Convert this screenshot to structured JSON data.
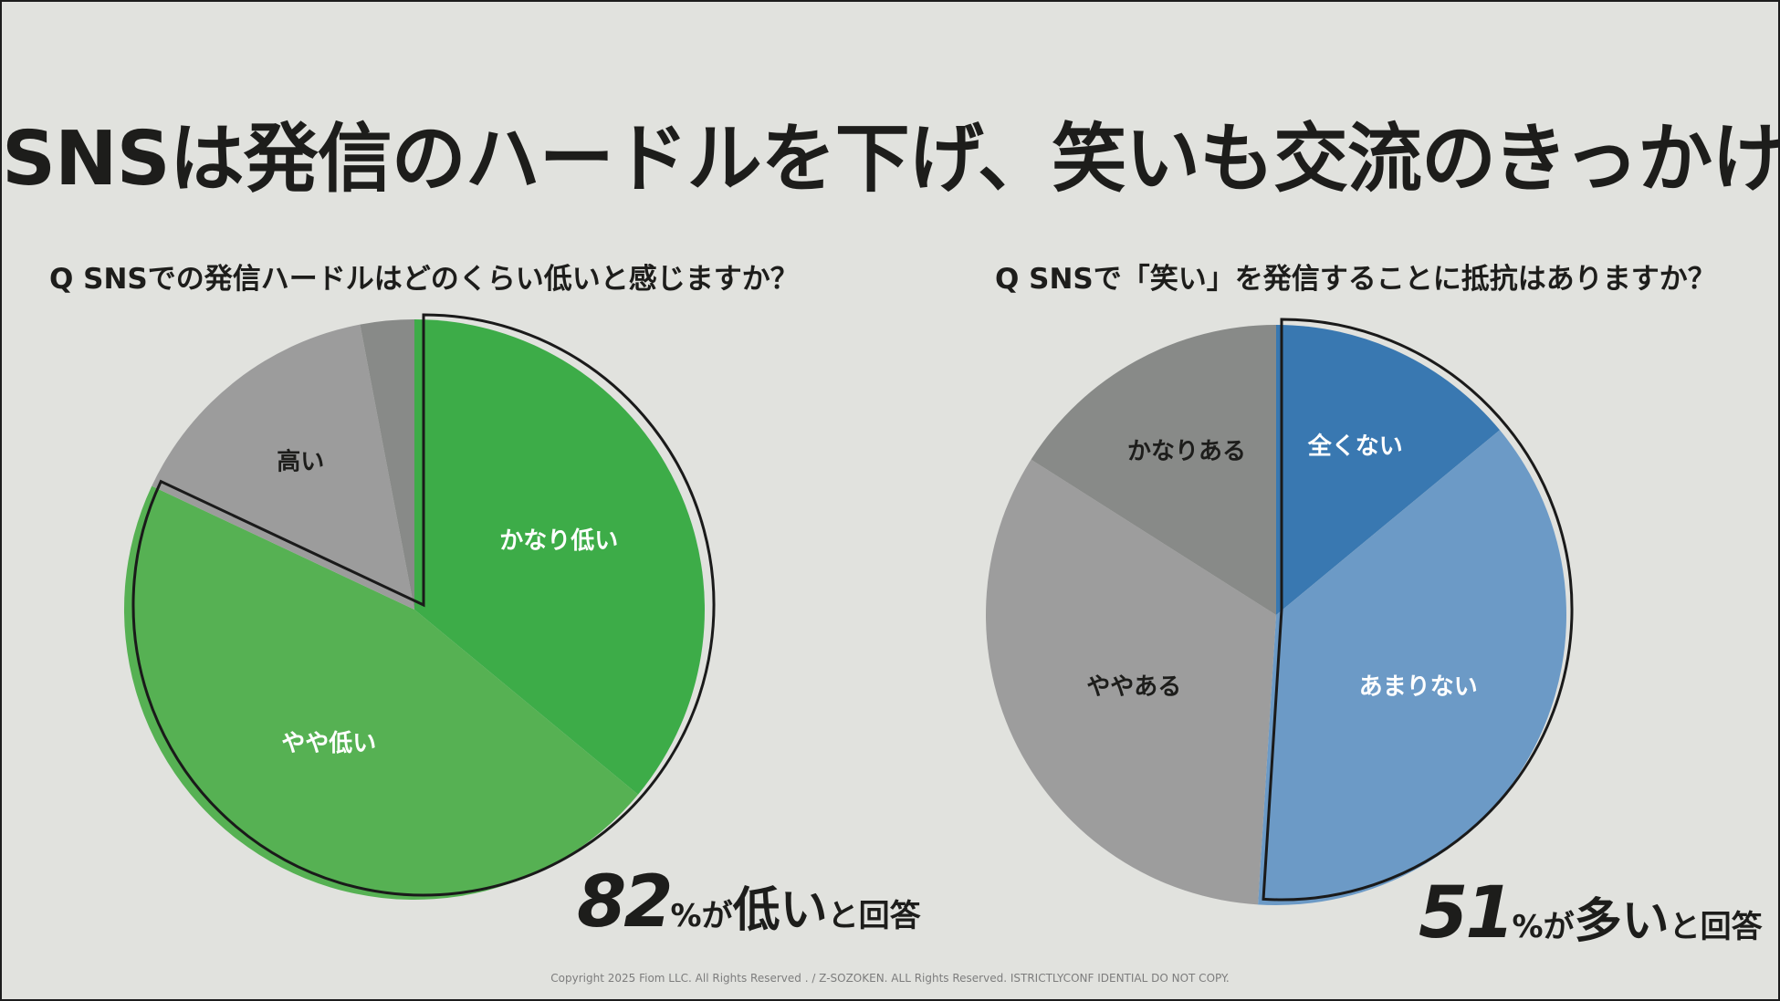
{
  "title": "SNSは発信のハードルを下げ、笑いも交流のきっかけに",
  "chart_data": [
    {
      "type": "pie",
      "question": "SNSでの発信ハードルはどのくらい低いと感じますか？",
      "question_prefix": "Q",
      "start_angle_deg": 0,
      "slices": [
        {
          "label": "かなり低い",
          "value": 36,
          "color": "#3dac48",
          "label_color": "#ffffff",
          "highlighted": true
        },
        {
          "label": "やや低い",
          "value": 46,
          "color": "#56b153",
          "label_color": "#ffffff",
          "highlighted": true
        },
        {
          "label": "高い",
          "value": 15,
          "color": "#9c9c9c",
          "label_color": "#1d1d1b",
          "highlighted": false
        },
        {
          "label": "",
          "value": 3,
          "color": "#888a88",
          "label_color": "#1d1d1b",
          "highlighted": false
        }
      ],
      "callout": {
        "number": "82",
        "percent": "%",
        "particle": "が",
        "word": "低い",
        "suffix": "と回答"
      }
    },
    {
      "type": "pie",
      "question": "SNSで「笑い」を発信することに抵抗はありますか？",
      "question_prefix": "Q",
      "start_angle_deg": 0,
      "slices": [
        {
          "label": "全くない",
          "value": 14,
          "color": "#3978b1",
          "label_color": "#ffffff",
          "highlighted": true
        },
        {
          "label": "あまりない",
          "value": 37,
          "color": "#6c9ac6",
          "label_color": "#ffffff",
          "highlighted": true
        },
        {
          "label": "ややある",
          "value": 33,
          "color": "#9d9d9d",
          "label_color": "#1d1d1b",
          "highlighted": false
        },
        {
          "label": "かなりある",
          "value": 16,
          "color": "#888a88",
          "label_color": "#1d1d1b",
          "highlighted": false
        }
      ],
      "callout": {
        "number": "51",
        "percent": "%",
        "particle": "が",
        "word": "多い",
        "suffix": "と回答"
      }
    }
  ],
  "copyright": "Copyright 2025 Fiom LLC. All Rights Reserved . / Z-SOZOKEN. ALL Rights Reserved. ISTRICTLYCONF IDENTIAL DO NOT COPY."
}
